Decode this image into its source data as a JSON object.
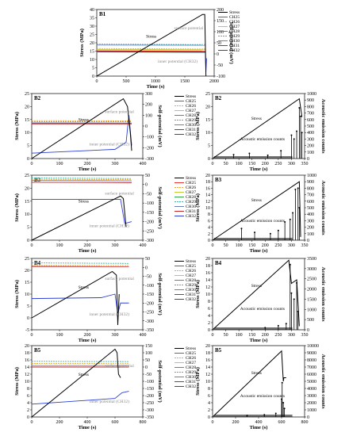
{
  "chart_data": [
    {
      "id": "B1",
      "type": "line",
      "panel_label": "B1",
      "xlabel": "Time (s)",
      "ylabel": "Stress (MPa)",
      "y2label": "Self-potential (mV)",
      "xlim": [
        0,
        2000
      ],
      "ylim": [
        0,
        40
      ],
      "y2lim": [
        -100,
        200
      ],
      "xticks": [
        0,
        500,
        1000,
        1500,
        2000
      ],
      "yticks": [
        0,
        5,
        10,
        15,
        20,
        25,
        30,
        35,
        40
      ],
      "y2ticks": [
        -100,
        -50,
        0,
        50,
        100,
        150,
        200
      ],
      "annotations": [
        "Stress",
        "surface potential",
        "inner potential (CH32)"
      ],
      "legend": [
        "Stress",
        "CH25",
        "CH26",
        "CH27",
        "CH28",
        "CH29",
        "CH30",
        "CH31",
        "CH32"
      ],
      "stress": {
        "x": [
          0,
          1800,
          1840,
          1860
        ],
        "y": [
          0,
          37,
          37,
          0
        ]
      },
      "sp_series": [
        {
          "name": "CH29",
          "x": [
            0,
            1850
          ],
          "y": [
            44,
            42
          ]
        },
        {
          "name": "CH30",
          "x": [
            0,
            1850
          ],
          "y": [
            40,
            39
          ]
        },
        {
          "name": "CH26",
          "x": [
            0,
            1850
          ],
          "y": [
            24,
            22
          ]
        },
        {
          "name": "CH27",
          "x": [
            0,
            1850
          ],
          "y": [
            20,
            19
          ]
        },
        {
          "name": "CH25",
          "x": [
            0,
            1850
          ],
          "y": [
            14,
            13
          ]
        },
        {
          "name": "CH31",
          "x": [
            0,
            1850
          ],
          "y": [
            12,
            10
          ]
        },
        {
          "name": "CH28",
          "x": [
            0,
            1850
          ],
          "y": [
            9,
            7
          ]
        },
        {
          "name": "CH32",
          "x": [
            0,
            1850,
            1860,
            1870
          ],
          "y": [
            10,
            8,
            -80,
            -20
          ]
        }
      ]
    },
    {
      "id": "B2",
      "type": "line",
      "panel_label": "B2",
      "xlabel": "Time (s)",
      "ylabel": "Stress (MPa)",
      "y2label": "Self-potential (mV)",
      "xlim": [
        0,
        400
      ],
      "ylim": [
        0,
        25
      ],
      "y2lim": [
        -300,
        300
      ],
      "xticks": [
        0,
        100,
        200,
        300,
        400
      ],
      "yticks": [
        0,
        5,
        10,
        15,
        20,
        25
      ],
      "y2ticks": [
        -300,
        -200,
        -100,
        0,
        100,
        200,
        300
      ],
      "annotations": [
        "Stress",
        "surface potential",
        "inner potential (CH32)"
      ],
      "legend": [
        "Stress",
        "CH25",
        "CH26",
        "CH27",
        "CH28",
        "CH29",
        "CH30",
        "CH31",
        "CH32"
      ],
      "stress": {
        "x": [
          0,
          330,
          345,
          355,
          360
        ],
        "y": [
          0,
          23,
          20,
          10,
          3
        ]
      },
      "sp_series": [
        {
          "name": "CH26",
          "x": [
            0,
            360
          ],
          "y": [
            50,
            48
          ]
        },
        {
          "name": "CH29",
          "x": [
            0,
            360
          ],
          "y": [
            40,
            40
          ]
        },
        {
          "name": "CH30",
          "x": [
            0,
            360
          ],
          "y": [
            30,
            28
          ]
        },
        {
          "name": "CH31",
          "x": [
            0,
            360
          ],
          "y": [
            20,
            20
          ]
        },
        {
          "name": "CH25",
          "x": [
            0,
            360
          ],
          "y": [
            25,
            24
          ]
        },
        {
          "name": "CH32",
          "x": [
            0,
            300,
            340,
            350,
            360
          ],
          "y": [
            -250,
            -215,
            -150,
            100,
            -180
          ]
        }
      ]
    },
    {
      "id": "B3",
      "type": "line",
      "panel_label": "B3",
      "xlabel": "Time (s)",
      "ylabel": "Stress (MPa)",
      "y2label": "Self-potential (mV)",
      "xlim": [
        0,
        400
      ],
      "ylim": [
        0,
        25
      ],
      "y2lim": [
        -300,
        50
      ],
      "xticks": [
        0,
        100,
        200,
        300,
        400
      ],
      "yticks": [
        0,
        5,
        10,
        15,
        20,
        25
      ],
      "y2ticks": [
        -300,
        -250,
        -200,
        -150,
        -100,
        -50,
        0,
        50
      ],
      "annotations": [
        "Stress",
        "surface potential",
        "inner potential (CH32)"
      ],
      "legend": [
        "Stress",
        "CH25",
        "CH26",
        "CH27",
        "CH28",
        "CH29",
        "CH30",
        "CH31",
        "CH32"
      ],
      "stress": {
        "x": [
          0,
          320,
          330,
          340
        ],
        "y": [
          0,
          17,
          16,
          5
        ]
      },
      "sp_series": [
        {
          "name": "CH29",
          "x": [
            0,
            360
          ],
          "y": [
            35,
            32
          ]
        },
        {
          "name": "CH26",
          "x": [
            0,
            360
          ],
          "y": [
            28,
            26
          ]
        },
        {
          "name": "CH30",
          "x": [
            0,
            360
          ],
          "y": [
            22,
            20
          ]
        },
        {
          "name": "CH31",
          "x": [
            0,
            360
          ],
          "y": [
            12,
            10
          ]
        },
        {
          "name": "CH32",
          "x": [
            0,
            320,
            335,
            360
          ],
          "y": [
            -80,
            -80,
            -210,
            -200
          ]
        }
      ]
    },
    {
      "id": "B4",
      "type": "line",
      "panel_label": "B4",
      "xlabel": "Time (s)",
      "ylabel": "Stress (MPa)",
      "y2label": "Self-potential (mV)",
      "xlim": [
        0,
        400
      ],
      "ylim": [
        -5,
        25
      ],
      "y2lim": [
        -350,
        50
      ],
      "xticks": [
        0,
        100,
        200,
        300,
        400
      ],
      "yticks": [
        -5,
        0,
        5,
        10,
        15,
        20,
        25
      ],
      "y2ticks": [
        -350,
        -300,
        -250,
        -200,
        -150,
        -100,
        -50,
        0,
        50
      ],
      "annotations": [
        "Stress",
        "surface potential",
        "inner potential (CH32)"
      ],
      "legend": [
        "Stress",
        "CH25",
        "CH26",
        "CH27",
        "CH28",
        "CH29",
        "CH30",
        "CH31",
        "CH32"
      ],
      "stress": {
        "x": [
          0,
          290,
          305,
          310,
          315
        ],
        "y": [
          0,
          19.5,
          18,
          -3,
          10
        ]
      },
      "sp_series": [
        {
          "name": "CH29",
          "x": [
            0,
            350
          ],
          "y": [
            25,
            22
          ]
        },
        {
          "name": "CH26",
          "x": [
            0,
            350
          ],
          "y": [
            10,
            10
          ]
        },
        {
          "name": "CH31",
          "x": [
            0,
            350
          ],
          "y": [
            5,
            4
          ]
        },
        {
          "name": "CH32",
          "x": [
            0,
            250,
            300,
            310,
            320,
            350
          ],
          "y": [
            -175,
            -170,
            -150,
            -260,
            -200,
            -200
          ]
        }
      ]
    },
    {
      "id": "B5",
      "type": "line",
      "panel_label": "B5",
      "xlabel": "Time (s)",
      "ylabel": "Stress (MPa)",
      "y2label": "Self-potential (mV)",
      "xlim": [
        0,
        800
      ],
      "ylim": [
        0,
        20
      ],
      "y2lim": [
        -350,
        150
      ],
      "xticks": [
        0,
        200,
        400,
        600,
        800
      ],
      "yticks": [
        0,
        2,
        4,
        6,
        8,
        10,
        12,
        14,
        16,
        18,
        20
      ],
      "y2ticks": [
        -350,
        -300,
        -250,
        -200,
        -150,
        -100,
        -50,
        0,
        50,
        100,
        150
      ],
      "annotations": [
        "Stress",
        "surface potential",
        "inner potential (CH32)"
      ],
      "legend": [
        "Stress",
        "CH25",
        "CH26",
        "CH27",
        "CH28",
        "CH29",
        "CH30",
        "CH31",
        "CH32"
      ],
      "stress": {
        "x": [
          0,
          600,
          615,
          625,
          640
        ],
        "y": [
          0,
          19,
          18,
          12,
          11
        ]
      },
      "sp_series": [
        {
          "name": "CH29",
          "x": [
            0,
            700
          ],
          "y": [
            40,
            38
          ]
        },
        {
          "name": "CH26",
          "x": [
            0,
            700
          ],
          "y": [
            25,
            24
          ]
        },
        {
          "name": "CH30",
          "x": [
            0,
            700
          ],
          "y": [
            10,
            10
          ]
        },
        {
          "name": "CH31",
          "x": [
            0,
            700
          ],
          "y": [
            0,
            0
          ]
        },
        {
          "name": "CH32",
          "x": [
            0,
            300,
            600,
            650,
            700
          ],
          "y": [
            -260,
            -240,
            -220,
            -180,
            -170
          ]
        }
      ]
    },
    {
      "id": "B2-AE",
      "type": "bar",
      "panel_label": "B2",
      "xlabel": "Time (s)",
      "ylabel": "Stress (MPa)",
      "y2label": "Acoustic emission counts",
      "xlim": [
        0,
        350
      ],
      "ylim": [
        0,
        25
      ],
      "y2lim": [
        0,
        1000
      ],
      "xticks": [
        0,
        50,
        100,
        150,
        200,
        250,
        300,
        350
      ],
      "yticks": [
        0,
        5,
        10,
        15,
        20,
        25
      ],
      "y2ticks": [
        0,
        100,
        200,
        300,
        400,
        500,
        600,
        700,
        800,
        900,
        1000
      ],
      "annotations": [
        "Stress",
        "Acoustic emission counts"
      ],
      "stress": {
        "x": [
          0,
          330,
          340
        ],
        "y": [
          0,
          23,
          16
        ]
      },
      "ae": {
        "x": [
          80,
          140,
          210,
          260,
          300,
          310,
          320,
          330,
          335,
          340
        ],
        "y": [
          60,
          80,
          50,
          120,
          360,
          300,
          420,
          780,
          650,
          400
        ]
      }
    },
    {
      "id": "B3-AE",
      "type": "bar",
      "panel_label": "B3",
      "xlabel": "Time (s)",
      "ylabel": "Stress (MPa)",
      "y2label": "Acoustic emission counts",
      "xlim": [
        0,
        350
      ],
      "ylim": [
        0,
        20
      ],
      "y2lim": [
        0,
        1000
      ],
      "xticks": [
        0,
        50,
        100,
        150,
        200,
        250,
        300,
        350
      ],
      "yticks": [
        0,
        2,
        4,
        6,
        8,
        10,
        12,
        14,
        16,
        18,
        20
      ],
      "y2ticks": [
        0,
        100,
        200,
        300,
        400,
        500,
        600,
        700,
        800,
        900,
        1000
      ],
      "annotations": [
        "Stress",
        "Acoustic emission counts"
      ],
      "stress": {
        "x": [
          0,
          330,
          335
        ],
        "y": [
          0,
          18,
          1
        ]
      },
      "ae": {
        "x": [
          110,
          160,
          220,
          250,
          275,
          295,
          305,
          315,
          325,
          330
        ],
        "y": [
          180,
          120,
          100,
          150,
          280,
          320,
          420,
          780,
          800,
          500
        ]
      }
    },
    {
      "id": "B4-AE",
      "type": "bar",
      "panel_label": "B4",
      "xlabel": "Time (s)",
      "ylabel": "Stress (MPa)",
      "y2label": "Acoustic emission counts",
      "xlim": [
        0,
        350
      ],
      "ylim": [
        0,
        20
      ],
      "y2lim": [
        0,
        3500
      ],
      "xticks": [
        0,
        50,
        100,
        150,
        200,
        250,
        300,
        350
      ],
      "yticks": [
        0,
        2,
        4,
        6,
        8,
        10,
        12,
        14,
        16,
        18,
        20
      ],
      "y2ticks": [
        0,
        500,
        1000,
        1500,
        2000,
        2500,
        3000,
        3500
      ],
      "annotations": [
        "Stress",
        "Acoustic emission counts"
      ],
      "stress": {
        "x": [
          0,
          290,
          300,
          320,
          330
        ],
        "y": [
          0,
          19.5,
          13,
          14,
          1
        ]
      },
      "ae": {
        "x": [
          200,
          250,
          280,
          295,
          300,
          310,
          320,
          325
        ],
        "y": [
          100,
          200,
          300,
          3200,
          1800,
          1500,
          2300,
          900
        ]
      }
    },
    {
      "id": "B5-AE",
      "type": "bar",
      "panel_label": "B5",
      "xlabel": "Time (s)",
      "ylabel": "Stress (MPa)",
      "y2label": "Acoustic emission counts",
      "xlim": [
        0,
        800
      ],
      "ylim": [
        0,
        20
      ],
      "y2lim": [
        0,
        10000
      ],
      "xticks": [
        0,
        200,
        400,
        600,
        800
      ],
      "yticks": [
        0,
        2,
        4,
        6,
        8,
        10,
        12,
        14,
        16,
        18,
        20
      ],
      "y2ticks": [
        0,
        1000,
        2000,
        3000,
        4000,
        5000,
        6000,
        7000,
        8000,
        9000,
        10000
      ],
      "annotations": [
        "Stress",
        "Acoustic emission counts"
      ],
      "stress": {
        "x": [
          0,
          600,
          615,
          620,
          640
        ],
        "y": [
          0,
          18.5,
          10,
          11,
          11
        ]
      },
      "ae": {
        "x": [
          300,
          450,
          550,
          600,
          605,
          615,
          625
        ],
        "y": [
          200,
          300,
          500,
          2500,
          4800,
          2000,
          1200
        ]
      }
    }
  ],
  "legend_colors": {
    "Stress": "#000000",
    "CH25": "#e8322d",
    "CH26": "#f0a830",
    "CH27": "#c8c832",
    "CH28": "#37a84a",
    "CH29": "#3fb8b0",
    "CH30": "#6b7fb8",
    "CH31": "#c02828",
    "CH32": "#2c3fd8"
  },
  "annotation_colors": {
    "surface": "#8a8a8a",
    "inner": "#8a8a8a"
  }
}
